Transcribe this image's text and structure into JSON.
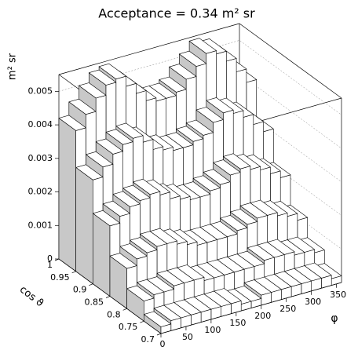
{
  "chart_data": {
    "type": "lego3d",
    "title": "Acceptance = 0.34 m² sr",
    "zlabel": "m² sr",
    "ylabel": "cos ϑ",
    "xlabel": "φ",
    "x_bins": [
      0,
      20,
      40,
      60,
      80,
      100,
      120,
      140,
      160,
      180,
      200,
      220,
      240,
      260,
      280,
      300,
      320,
      340,
      360
    ],
    "y_bins": [
      1,
      0.95,
      0.9,
      0.85,
      0.8,
      0.75,
      0.7
    ],
    "values": [
      [
        0.0042,
        0.0046,
        0.005,
        0.0053,
        0.0054,
        0.0051,
        0.0048,
        0.0045,
        0.0044,
        0.0044,
        0.0045,
        0.0048,
        0.0051,
        0.0054,
        0.0053,
        0.005,
        0.0046,
        0.0042
      ],
      [
        0.0031,
        0.0034,
        0.0037,
        0.0039,
        0.004,
        0.0038,
        0.0035,
        0.0034,
        0.0033,
        0.0033,
        0.0034,
        0.0035,
        0.0038,
        0.004,
        0.0039,
        0.0037,
        0.0034,
        0.0031
      ],
      [
        0.0021,
        0.0023,
        0.0025,
        0.0026,
        0.0027,
        0.0026,
        0.0024,
        0.0023,
        0.0022,
        0.0022,
        0.0023,
        0.0024,
        0.0026,
        0.0027,
        0.0026,
        0.0025,
        0.0023,
        0.0021
      ],
      [
        0.0012,
        0.0014,
        0.0015,
        0.0016,
        0.0016,
        0.0015,
        0.0014,
        0.0013,
        0.0013,
        0.0013,
        0.0013,
        0.0014,
        0.0015,
        0.0016,
        0.0016,
        0.0015,
        0.0014,
        0.0012
      ],
      [
        0.0006,
        0.0007,
        0.0007,
        0.0008,
        0.0008,
        0.0008,
        0.0007,
        0.0007,
        0.0007,
        0.0007,
        0.0007,
        0.0007,
        0.0008,
        0.0008,
        0.0008,
        0.0007,
        0.0007,
        0.0006
      ],
      [
        0.0002,
        0.0003,
        0.0003,
        0.0003,
        0.0003,
        0.0003,
        0.0003,
        0.0003,
        0.0002,
        0.0002,
        0.0003,
        0.0003,
        0.0003,
        0.0003,
        0.0003,
        0.0003,
        0.0003,
        0.0002
      ]
    ],
    "xlim": [
      0,
      360
    ],
    "ylim": [
      0.7,
      1
    ],
    "zlim": [
      0,
      0.0055
    ],
    "xticks": [
      0,
      50,
      100,
      150,
      200,
      250,
      300,
      350
    ],
    "yticks": [
      1,
      0.95,
      0.9,
      0.85,
      0.8,
      0.75,
      0.7
    ],
    "zticks": [
      0,
      0.001,
      0.002,
      0.003,
      0.004,
      0.005
    ],
    "grid": true,
    "bar_color": "#ffffff",
    "side_color": "#c8c8c8"
  }
}
